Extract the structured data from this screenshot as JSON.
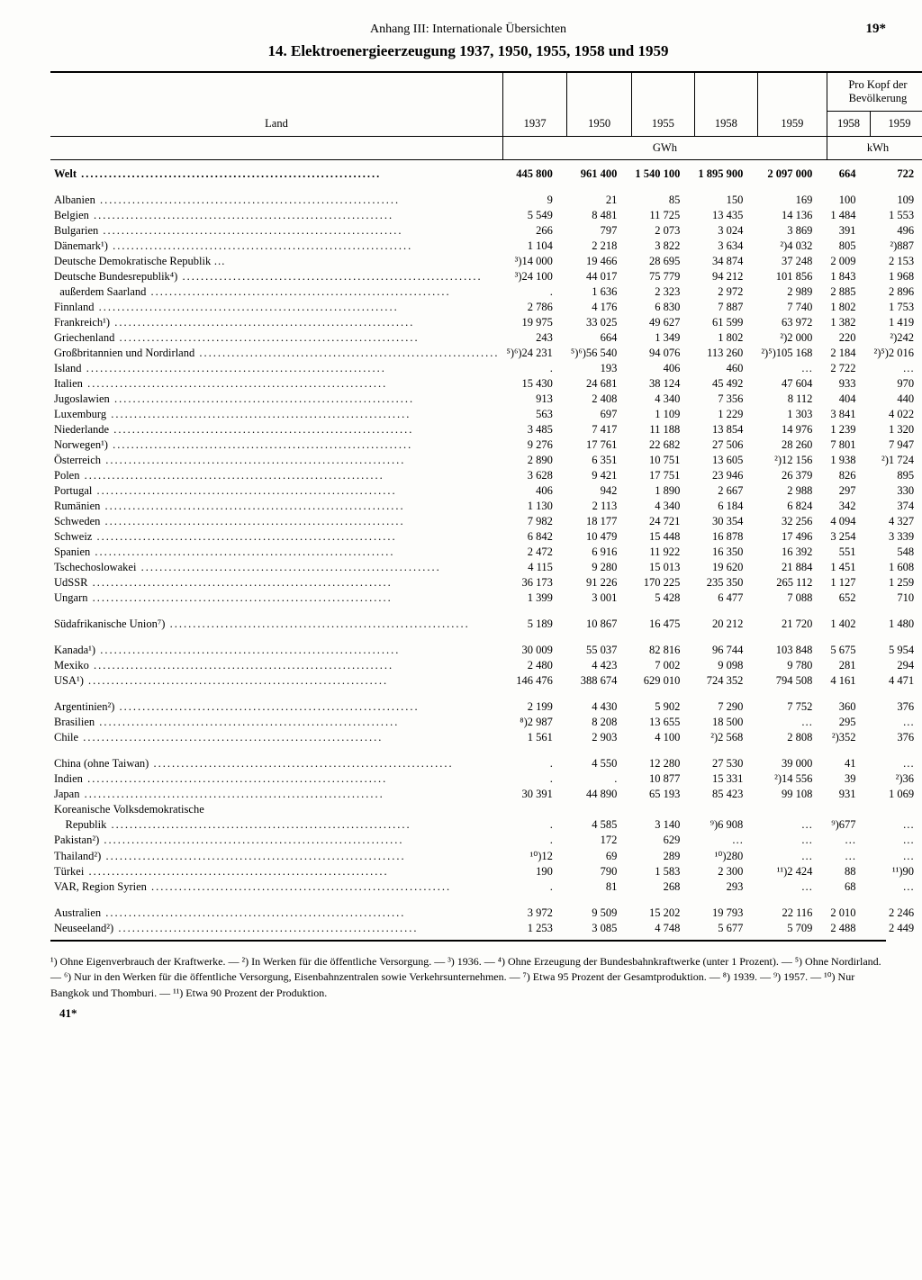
{
  "header": {
    "appendix": "Anhang III: Internationale Übersichten",
    "page_number": "19*",
    "title": "14. Elektroenergieerzeugung 1937, 1950, 1955, 1958 und 1959"
  },
  "table": {
    "col_land": "Land",
    "years": [
      "1937",
      "1950",
      "1955",
      "1958",
      "1959"
    ],
    "per_capita_header": "Pro Kopf der Bevölkerung",
    "per_capita_years": [
      "1958",
      "1959"
    ],
    "unit_gwh": "GWh",
    "unit_kwh": "kWh",
    "rows": [
      {
        "bold": true,
        "land": "Welt",
        "v": [
          "445 800",
          "961 400",
          "1 540 100",
          "1 895 900",
          "2 097 000",
          "664",
          "722"
        ]
      },
      {
        "gap": true
      },
      {
        "land": "Albanien",
        "v": [
          "9",
          "21",
          "85",
          "150",
          "169",
          "100",
          "109"
        ]
      },
      {
        "land": "Belgien",
        "v": [
          "5 549",
          "8 481",
          "11 725",
          "13 435",
          "14 136",
          "1 484",
          "1 553"
        ]
      },
      {
        "land": "Bulgarien",
        "v": [
          "266",
          "797",
          "2 073",
          "3 024",
          "3 869",
          "391",
          "496"
        ]
      },
      {
        "land": "Dänemark¹)",
        "v": [
          "1 104",
          "2 218",
          "3 822",
          "3 634",
          "²)4 032",
          "805",
          "²)887"
        ]
      },
      {
        "land": "Deutsche Demokratische Republik …",
        "nodots": true,
        "v": [
          "³)14 000",
          "19 466",
          "28 695",
          "34 874",
          "37 248",
          "2 009",
          "2 153"
        ]
      },
      {
        "land": "Deutsche Bundesrepublik⁴)",
        "v": [
          "³)24 100",
          "44 017",
          "75 779",
          "94 212",
          "101 856",
          "1 843",
          "1 968"
        ]
      },
      {
        "land": "  außerdem Saarland",
        "v": [
          ".",
          "1 636",
          "2 323",
          "2 972",
          "2 989",
          "2 885",
          "2 896"
        ]
      },
      {
        "land": "Finnland",
        "v": [
          "2 786",
          "4 176",
          "6 830",
          "7 887",
          "7 740",
          "1 802",
          "1 753"
        ]
      },
      {
        "land": "Frankreich¹)",
        "v": [
          "19 975",
          "33 025",
          "49 627",
          "61 599",
          "63 972",
          "1 382",
          "1 419"
        ]
      },
      {
        "land": "Griechenland",
        "v": [
          "243",
          "664",
          "1 349",
          "1 802",
          "²)2 000",
          "220",
          "²)242"
        ]
      },
      {
        "land": "Großbritannien und Nordirland",
        "v": [
          "⁵)⁶)24 231",
          "⁵)⁶)56 540",
          "94 076",
          "113 260",
          "²)⁵)105 168",
          "2 184",
          "²)⁵)2 016"
        ]
      },
      {
        "land": "Island",
        "v": [
          ".",
          "193",
          "406",
          "460",
          "…",
          "2 722",
          "…"
        ]
      },
      {
        "land": "Italien",
        "v": [
          "15 430",
          "24 681",
          "38 124",
          "45 492",
          "47 604",
          "933",
          "970"
        ]
      },
      {
        "land": "Jugoslawien",
        "v": [
          "913",
          "2 408",
          "4 340",
          "7 356",
          "8 112",
          "404",
          "440"
        ]
      },
      {
        "land": "Luxemburg",
        "v": [
          "563",
          "697",
          "1 109",
          "1 229",
          "1 303",
          "3 841",
          "4 022"
        ]
      },
      {
        "land": "Niederlande",
        "v": [
          "3 485",
          "7 417",
          "11 188",
          "13 854",
          "14 976",
          "1 239",
          "1 320"
        ]
      },
      {
        "land": "Norwegen¹)",
        "v": [
          "9 276",
          "17 761",
          "22 682",
          "27 506",
          "28 260",
          "7 801",
          "7 947"
        ]
      },
      {
        "land": "Österreich",
        "v": [
          "2 890",
          "6 351",
          "10 751",
          "13 605",
          "²)12 156",
          "1 938",
          "²)1 724"
        ]
      },
      {
        "land": "Polen",
        "v": [
          "3 628",
          "9 421",
          "17 751",
          "23 946",
          "26 379",
          "826",
          "895"
        ]
      },
      {
        "land": "Portugal",
        "v": [
          "406",
          "942",
          "1 890",
          "2 667",
          "2 988",
          "297",
          "330"
        ]
      },
      {
        "land": "Rumänien",
        "v": [
          "1 130",
          "2 113",
          "4 340",
          "6 184",
          "6 824",
          "342",
          "374"
        ]
      },
      {
        "land": "Schweden",
        "v": [
          "7 982",
          "18 177",
          "24 721",
          "30 354",
          "32 256",
          "4 094",
          "4 327"
        ]
      },
      {
        "land": "Schweiz",
        "v": [
          "6 842",
          "10 479",
          "15 448",
          "16 878",
          "17 496",
          "3 254",
          "3 339"
        ]
      },
      {
        "land": "Spanien",
        "v": [
          "2 472",
          "6 916",
          "11 922",
          "16 350",
          "16 392",
          "551",
          "548"
        ]
      },
      {
        "land": "Tschechoslowakei",
        "v": [
          "4 115",
          "9 280",
          "15 013",
          "19 620",
          "21 884",
          "1 451",
          "1 608"
        ]
      },
      {
        "land": "UdSSR",
        "v": [
          "36 173",
          "91 226",
          "170 225",
          "235 350",
          "265 112",
          "1 127",
          "1 259"
        ]
      },
      {
        "land": "Ungarn",
        "v": [
          "1 399",
          "3 001",
          "5 428",
          "6 477",
          "7 088",
          "652",
          "710"
        ]
      },
      {
        "gap": true
      },
      {
        "land": "Südafrikanische Union⁷)",
        "v": [
          "5 189",
          "10 867",
          "16 475",
          "20 212",
          "21 720",
          "1 402",
          "1 480"
        ]
      },
      {
        "gap": true
      },
      {
        "land": "Kanada¹)",
        "v": [
          "30 009",
          "55 037",
          "82 816",
          "96 744",
          "103 848",
          "5 675",
          "5 954"
        ]
      },
      {
        "land": "Mexiko",
        "v": [
          "2 480",
          "4 423",
          "7 002",
          "9 098",
          "9 780",
          "281",
          "294"
        ]
      },
      {
        "land": "USA¹)",
        "v": [
          "146 476",
          "388 674",
          "629 010",
          "724 352",
          "794 508",
          "4 161",
          "4 471"
        ]
      },
      {
        "gap": true
      },
      {
        "land": "Argentinien²)",
        "v": [
          "2 199",
          "4 430",
          "5 902",
          "7 290",
          "7 752",
          "360",
          "376"
        ]
      },
      {
        "land": "Brasilien",
        "v": [
          "⁸)2 987",
          "8 208",
          "13 655",
          "18 500",
          "…",
          "295",
          "…"
        ]
      },
      {
        "land": "Chile",
        "v": [
          "1 561",
          "2 903",
          "4 100",
          "²)2 568",
          "2 808",
          "²)352",
          "376"
        ]
      },
      {
        "gap": true
      },
      {
        "land": "China (ohne Taiwan)",
        "v": [
          ".",
          "4 550",
          "12 280",
          "27 530",
          "39 000",
          "41",
          "…"
        ]
      },
      {
        "land": "Indien",
        "v": [
          ".",
          ".",
          "10 877",
          "15 331",
          "²)14 556",
          "39",
          "²)36"
        ]
      },
      {
        "land": "Japan",
        "v": [
          "30 391",
          "44 890",
          "65 193",
          "85 423",
          "99 108",
          "931",
          "1 069"
        ]
      },
      {
        "land": "Koreanische Volksdemokratische",
        "nodots": true,
        "v": [
          "",
          "",
          "",
          "",
          "",
          "",
          ""
        ]
      },
      {
        "land": "    Republik",
        "v": [
          ".",
          "4 585",
          "3 140",
          "⁹)6 908",
          "…",
          "⁹)677",
          "…"
        ]
      },
      {
        "land": "Pakistan²)",
        "v": [
          ".",
          "172",
          "629",
          "…",
          "…",
          "…",
          "…"
        ]
      },
      {
        "land": "Thailand²)",
        "v": [
          "¹⁰)12",
          "69",
          "289",
          "¹⁰)280",
          "…",
          "…",
          "…"
        ]
      },
      {
        "land": "Türkei",
        "v": [
          "190",
          "790",
          "1 583",
          "2 300",
          "¹¹)2 424",
          "88",
          "¹¹)90"
        ]
      },
      {
        "land": "VAR, Region Syrien",
        "v": [
          ".",
          "81",
          "268",
          "293",
          "…",
          "68",
          "…"
        ]
      },
      {
        "gap": true
      },
      {
        "land": "Australien",
        "v": [
          "3 972",
          "9 509",
          "15 202",
          "19 793",
          "22 116",
          "2 010",
          "2 246"
        ]
      },
      {
        "land": "Neuseeland²)",
        "v": [
          "1 253",
          "3 085",
          "4 748",
          "5 677",
          "5 709",
          "2 488",
          "2 449"
        ]
      }
    ]
  },
  "footnotes": "¹) Ohne Eigenverbrauch der Kraftwerke. — ²) In Werken für die öffentliche Versorgung. — ³) 1936. — ⁴) Ohne Erzeugung der Bundesbahnkraftwerke (unter 1 Prozent). — ⁵) Ohne Nordirland. — ⁶) Nur in den Werken für die öffentliche Versorgung, Eisenbahnzentralen sowie Verkehrsunternehmen. — ⁷) Etwa 95 Prozent der Gesamtproduktion. — ⁸) 1939. — ⁹) 1957. — ¹⁰) Nur Bangkok und Thomburi. — ¹¹) Etwa 90 Prozent der Produktion.",
  "bottom_page": "41*"
}
